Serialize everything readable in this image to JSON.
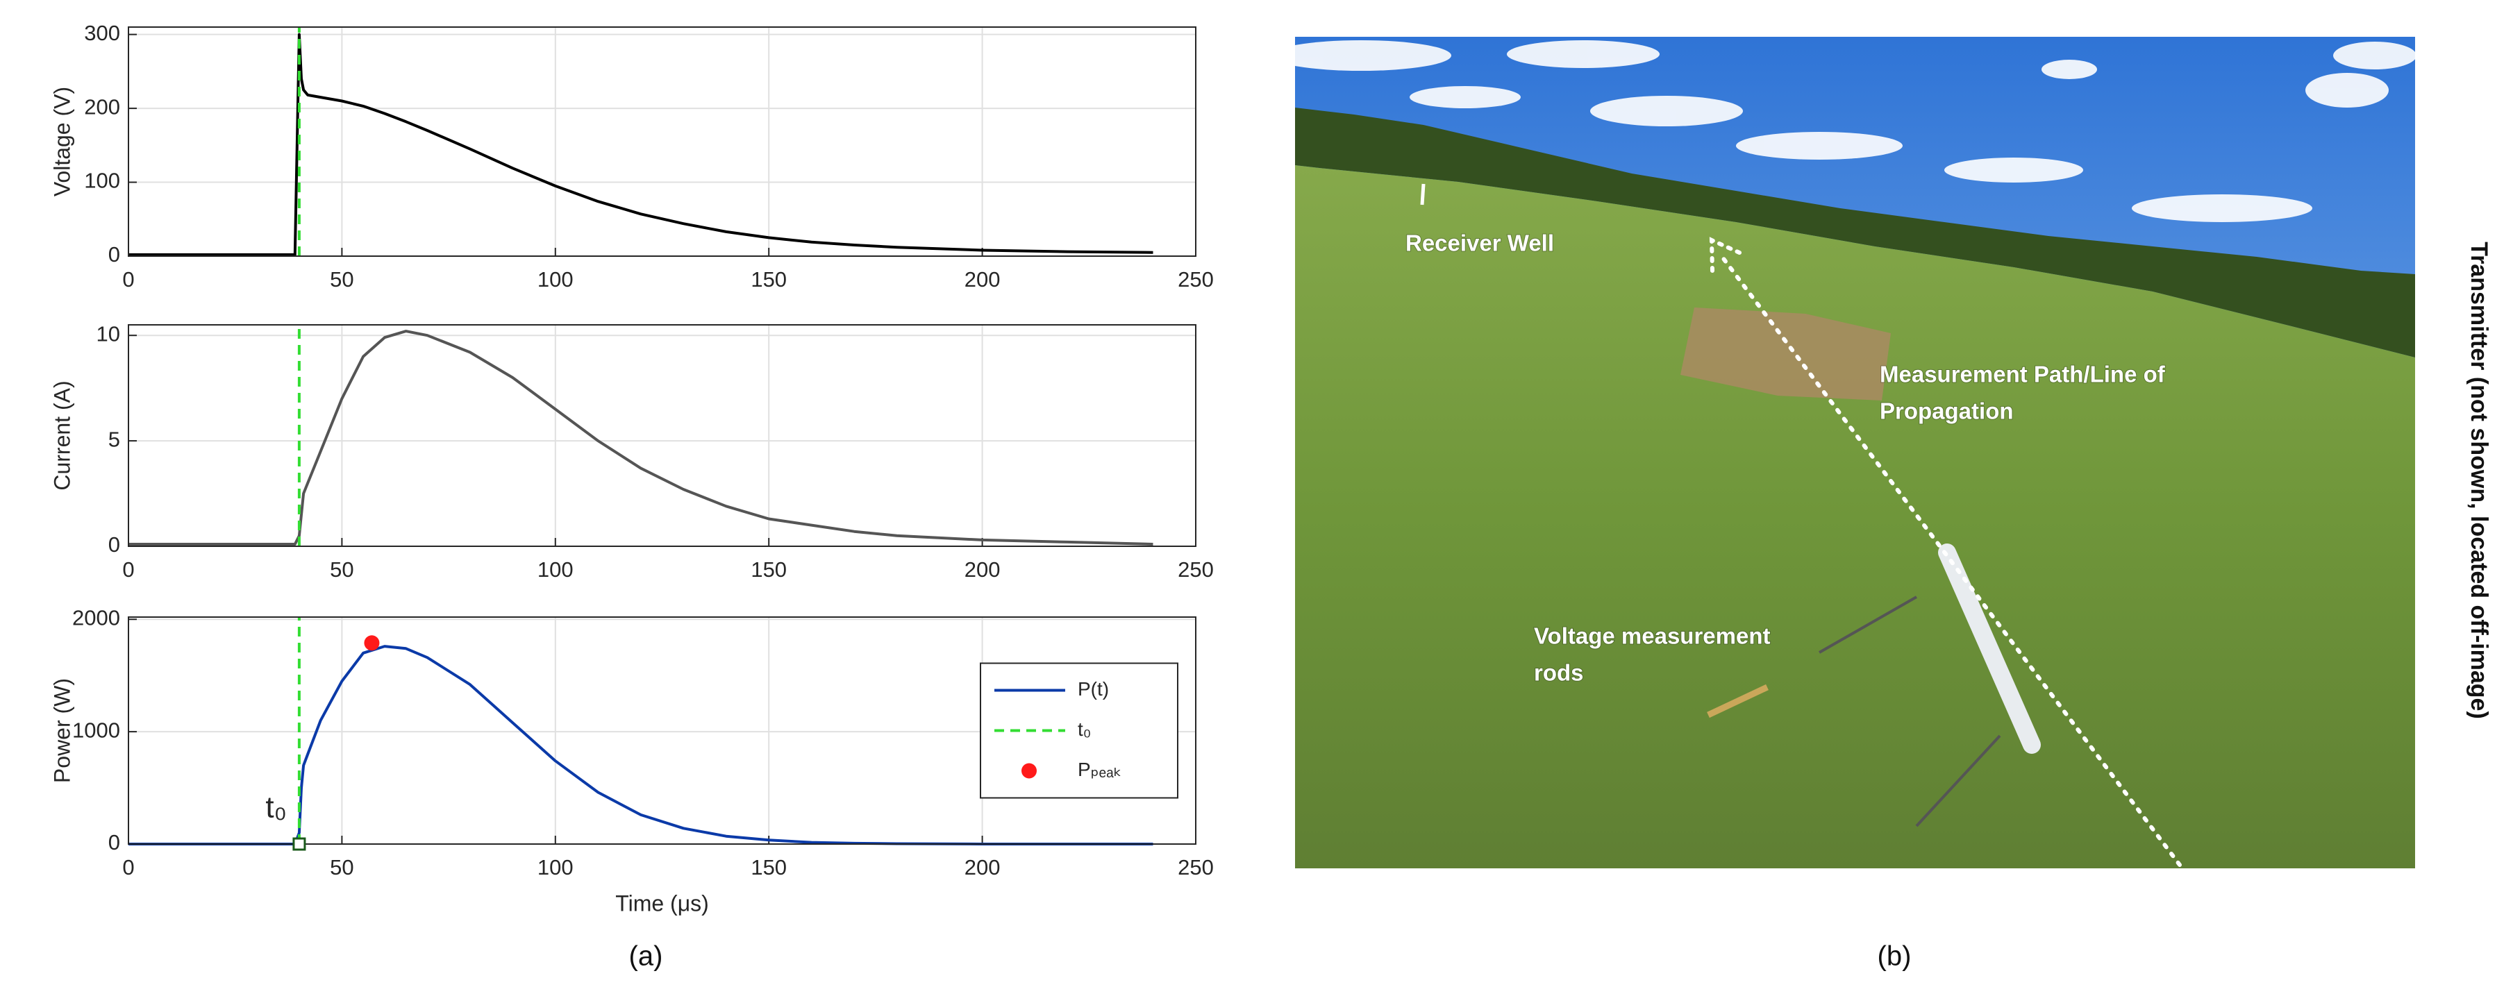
{
  "chart_data": [
    {
      "type": "line",
      "ylabel": "Voltage (V)",
      "x": [
        0,
        10,
        20,
        30,
        39,
        40,
        40.5,
        41,
        42,
        45,
        50,
        55,
        60,
        65,
        70,
        80,
        90,
        100,
        110,
        120,
        130,
        140,
        150,
        160,
        170,
        180,
        200,
        220,
        240
      ],
      "series": [
        {
          "color": "#000000",
          "values": [
            2,
            2,
            2,
            2,
            2,
            300,
            240,
            225,
            218,
            215,
            210,
            203,
            193,
            182,
            170,
            145,
            119,
            95,
            74,
            57,
            44,
            33,
            25,
            19,
            15,
            12,
            8,
            6,
            5
          ]
        },
        {
          "color": "#33dd33",
          "line_style": "dashed",
          "x": [
            40,
            40
          ],
          "values": [
            0,
            310
          ]
        }
      ],
      "xlim": [
        0,
        250
      ],
      "xticks": [
        0,
        50,
        100,
        150,
        200,
        250
      ],
      "ylim": [
        0,
        310
      ],
      "yticks": [
        0,
        100,
        200,
        300
      ],
      "grid": true
    },
    {
      "type": "line",
      "ylabel": "Current (A)",
      "x": [
        0,
        10,
        20,
        30,
        39,
        40,
        40.5,
        41,
        42,
        45,
        50,
        55,
        60,
        65,
        70,
        80,
        90,
        100,
        110,
        120,
        130,
        140,
        150,
        160,
        170,
        180,
        200,
        220,
        240
      ],
      "series": [
        {
          "color": "#555555",
          "values": [
            0.1,
            0.1,
            0.1,
            0.1,
            0.1,
            0.5,
            1.5,
            2.5,
            3,
            4.5,
            7,
            9,
            9.9,
            10.2,
            10,
            9.2,
            8,
            6.5,
            5,
            3.7,
            2.7,
            1.9,
            1.3,
            1,
            0.7,
            0.5,
            0.3,
            0.2,
            0.1
          ]
        },
        {
          "color": "#33dd33",
          "line_style": "dashed",
          "x": [
            40,
            40
          ],
          "values": [
            0,
            10.5
          ]
        }
      ],
      "xlim": [
        0,
        250
      ],
      "xticks": [
        0,
        50,
        100,
        150,
        200,
        250
      ],
      "ylim": [
        0,
        10.5
      ],
      "yticks": [
        0,
        5,
        10
      ],
      "grid": true
    },
    {
      "type": "line",
      "ylabel": "Power (W)",
      "xlabel": "Time (μs)",
      "x": [
        0,
        10,
        20,
        30,
        39,
        40,
        40.5,
        41,
        42,
        45,
        50,
        55,
        60,
        65,
        70,
        80,
        90,
        100,
        110,
        120,
        130,
        140,
        150,
        160,
        170,
        180,
        200,
        220,
        240
      ],
      "series": [
        {
          "name": "P(t)",
          "color": "#0b3aa8",
          "values": [
            0,
            0,
            0,
            0,
            0,
            100,
            500,
            700,
            800,
            1100,
            1450,
            1700,
            1760,
            1740,
            1660,
            1420,
            1080,
            740,
            460,
            260,
            140,
            70,
            35,
            15,
            7,
            3,
            0,
            0,
            0
          ]
        },
        {
          "name": "t₀",
          "color": "#33dd33",
          "line_style": "dashed",
          "x": [
            40,
            40
          ],
          "values": [
            0,
            2020
          ]
        },
        {
          "name": "Pₚₑₐₖ",
          "color": "#ff1a1a",
          "marker": "circle",
          "x": [
            57
          ],
          "values": [
            1790
          ]
        }
      ],
      "annotations": [
        {
          "text": "t₀",
          "x": 40,
          "y": 0
        }
      ],
      "legend": "center right",
      "xlim": [
        0,
        250
      ],
      "xticks": [
        0,
        50,
        100,
        150,
        200,
        250
      ],
      "ylim": [
        0,
        2020
      ],
      "yticks": [
        0,
        1000,
        2000
      ],
      "grid": true
    }
  ],
  "figure": {
    "captions": [
      "(a)",
      "(b)"
    ],
    "photo_labels": {
      "receiver": "Receiver Well",
      "path": [
        "Measurement Path/Line of",
        "Propagation"
      ],
      "rods": [
        "Voltage measurement",
        "rods"
      ]
    },
    "side_label": "Transmitter (not shown, located off-image)"
  }
}
